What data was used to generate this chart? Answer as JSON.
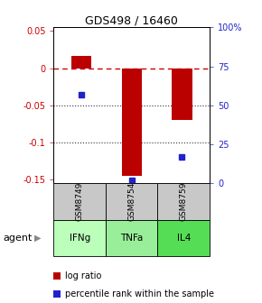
{
  "title": "GDS498 / 16460",
  "samples": [
    "GSM8749",
    "GSM8754",
    "GSM8759"
  ],
  "agents": [
    "IFNg",
    "TNFa",
    "IL4"
  ],
  "log_ratios": [
    0.017,
    -0.145,
    -0.07
  ],
  "percentile_ranks": [
    0.57,
    0.02,
    0.17
  ],
  "ylim_left": [
    -0.155,
    0.055
  ],
  "left_yticks": [
    0.05,
    0.0,
    -0.05,
    -0.1,
    -0.15
  ],
  "left_yticklabels": [
    "0.05",
    "0",
    "-0.05",
    "-0.1",
    "-0.15"
  ],
  "right_yticks": [
    0.0,
    0.25,
    0.5,
    0.75,
    1.0
  ],
  "right_yticklabels": [
    "0",
    "25",
    "50",
    "75",
    "100%"
  ],
  "bar_color": "#bb0000",
  "dot_color": "#2222cc",
  "zero_line_color": "#cc0000",
  "grid_line_color": "#333333",
  "sample_box_color": "#c8c8c8",
  "agent_colors": [
    "#bbffbb",
    "#99ee99",
    "#55dd55"
  ],
  "bar_width": 0.4,
  "agent_label": "agent"
}
